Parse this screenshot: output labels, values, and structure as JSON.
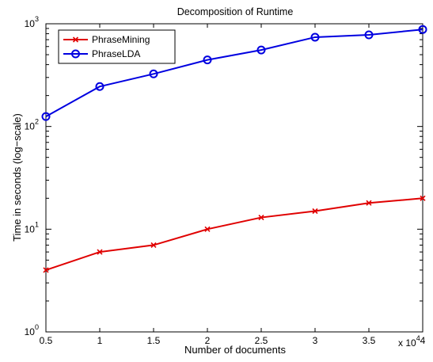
{
  "chart_data": {
    "type": "line",
    "title": "Decomposition of Runtime",
    "xlabel": "Number of documents",
    "ylabel": "Time in seconds (log−scale)",
    "x_exponent_label": "x 10",
    "x_exponent_power": "4",
    "x": [
      0.5,
      1,
      1.5,
      2,
      2.5,
      3,
      3.5,
      4
    ],
    "x_tick_labels": [
      "0.5",
      "1",
      "1.5",
      "2",
      "2.5",
      "3",
      "3.5",
      "4"
    ],
    "xlim": [
      0.5,
      4
    ],
    "ylim": [
      1,
      1000
    ],
    "y_scale": "log",
    "y_ticks": [
      {
        "value": 1,
        "base": "10",
        "power": "0"
      },
      {
        "value": 10,
        "base": "10",
        "power": "1"
      },
      {
        "value": 100,
        "base": "10",
        "power": "2"
      },
      {
        "value": 1000,
        "base": "10",
        "power": "3"
      }
    ],
    "grid": false,
    "legend_position": "top-left",
    "series": [
      {
        "name": "PhraseMining",
        "color": "#e00000",
        "marker": "x",
        "values": [
          4,
          6,
          7,
          10,
          13,
          15,
          18,
          20
        ]
      },
      {
        "name": "PhraseLDA",
        "color": "#0000e0",
        "marker": "o",
        "values": [
          125,
          245,
          325,
          445,
          555,
          740,
          780,
          880
        ]
      }
    ]
  }
}
